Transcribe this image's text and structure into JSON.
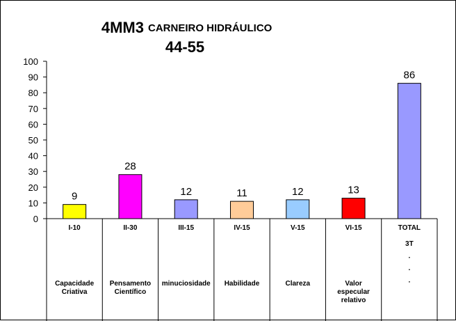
{
  "chart_data": {
    "type": "bar",
    "title_code": "4MM3",
    "title_name": "CARNEIRO HIDRÁULICO",
    "title_range": "44-55",
    "ylim": [
      0,
      100
    ],
    "yticks": [
      "0",
      "10",
      "20",
      "30",
      "40",
      "50",
      "60",
      "70",
      "80",
      "90",
      "100"
    ],
    "categories": [
      "I-10",
      "II-30",
      "III-15",
      "IV-15",
      "V-15",
      "VI-15",
      "TOTAL"
    ],
    "values": [
      9,
      28,
      12,
      11,
      12,
      13,
      86
    ],
    "value_labels": [
      "9",
      "28",
      "12",
      "11",
      "12",
      "13",
      "86"
    ],
    "colors": [
      "#FFFF00",
      "#FF00FF",
      "#9999FF",
      "#FFCC99",
      "#99CCFF",
      "#FF0000",
      "#9999FF"
    ],
    "sub_labels": [
      [
        "Capacidade",
        "Criativa"
      ],
      [
        "Pensamento",
        "Científico"
      ],
      [
        "minuciosidade"
      ],
      [
        "Habilidade"
      ],
      [
        "Clareza"
      ],
      [
        "Valor",
        "especular",
        "relativo"
      ],
      [
        "3T",
        ".",
        ".",
        "."
      ]
    ],
    "grid": false
  }
}
